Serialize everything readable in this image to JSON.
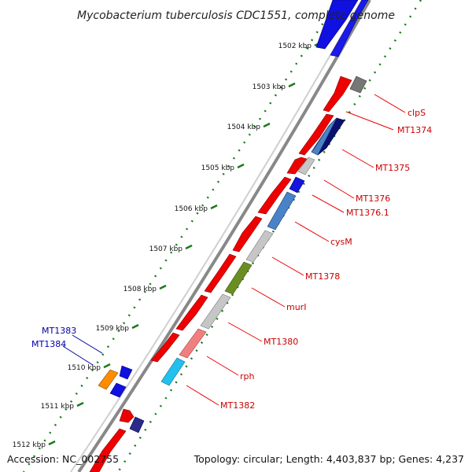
{
  "title": "Mycobacterium tuberculosis CDC1551, complete genome",
  "footer": {
    "accession": "Accession: NC_002755",
    "summary": "Topology: circular; Length: 4,403,837 bp; Genes: 4,237"
  },
  "colors": {
    "background": "#ffffff",
    "backbone": "#7a7a7a",
    "tick": "#1a7a1a",
    "label_right": "#cc0000",
    "label_left": "#0000aa"
  },
  "ticks": [
    {
      "label": "1502 kbp"
    },
    {
      "label": "1503 kbp"
    },
    {
      "label": "1504 kbp"
    },
    {
      "label": "1505 kbp"
    },
    {
      "label": "1506 kbp"
    },
    {
      "label": "1507 kbp"
    },
    {
      "label": "1508 kbp"
    },
    {
      "label": "1509 kbp"
    },
    {
      "label": "1510 kbp"
    },
    {
      "label": "1511 kbp"
    },
    {
      "label": "1512 kbp"
    }
  ],
  "gene_labels": [
    {
      "text": "clpS",
      "side": "right",
      "color": "#cc0000"
    },
    {
      "text": "MT1374",
      "side": "right",
      "color": "#cc0000"
    },
    {
      "text": "MT1375",
      "side": "right",
      "color": "#cc0000"
    },
    {
      "text": "MT1376",
      "side": "right",
      "color": "#cc0000"
    },
    {
      "text": "MT1376.1",
      "side": "right",
      "color": "#cc0000"
    },
    {
      "text": "cysM",
      "side": "right",
      "color": "#cc0000"
    },
    {
      "text": "MT1378",
      "side": "right",
      "color": "#cc0000"
    },
    {
      "text": "murI",
      "side": "right",
      "color": "#cc0000"
    },
    {
      "text": "MT1380",
      "side": "right",
      "color": "#cc0000"
    },
    {
      "text": "rph",
      "side": "right",
      "color": "#cc0000"
    },
    {
      "text": "MT1382",
      "side": "right",
      "color": "#cc0000"
    },
    {
      "text": "MT1383",
      "side": "left",
      "color": "#0000aa"
    },
    {
      "text": "MT1384",
      "side": "left",
      "color": "#0000aa"
    }
  ]
}
